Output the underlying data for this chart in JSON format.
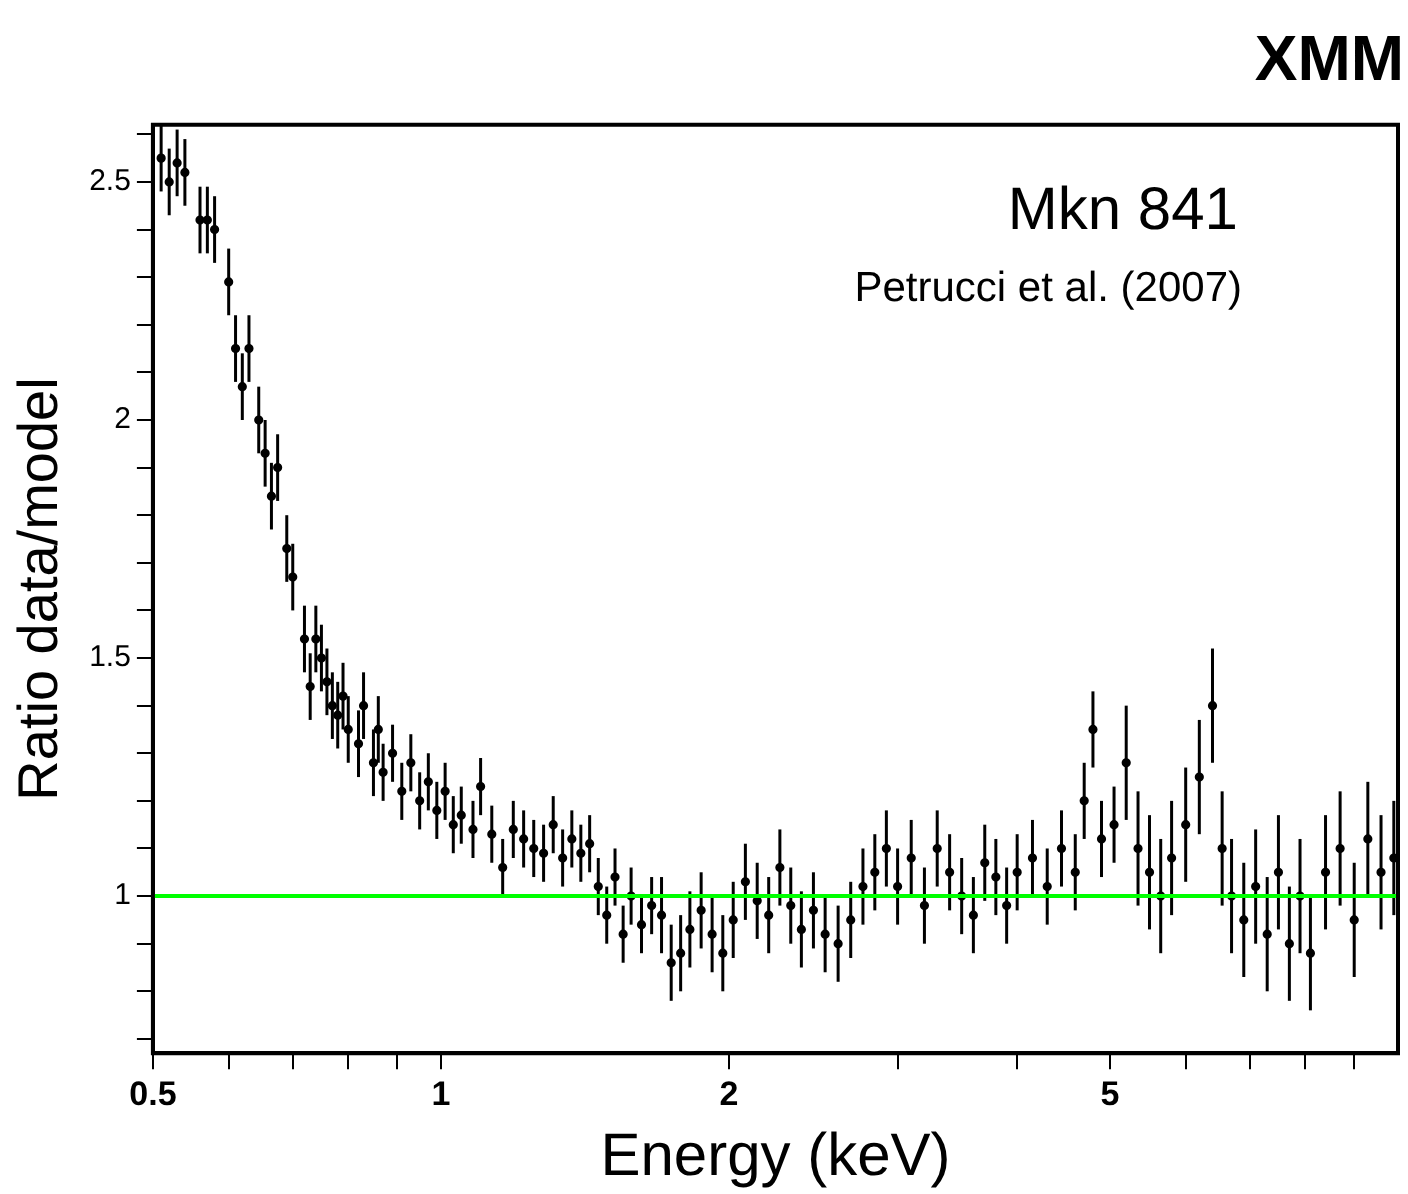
{
  "chart_data": {
    "type": "scatter",
    "title": "XMM",
    "xlabel": "Energy (keV)",
    "ylabel": "Ratio data/model",
    "annotations": [
      "Mkn 841",
      "Petrucci et al. (2007)"
    ],
    "log": "x",
    "grid": false,
    "legend": false,
    "marker": "circle",
    "xlim": [
      0.5,
      10
    ],
    "xticks": [
      0.5,
      {
        "value": 0.6,
        "label": null
      },
      {
        "value": 0.7,
        "label": null
      },
      {
        "value": 0.8,
        "label": null
      },
      {
        "value": 0.9,
        "label": null
      },
      1,
      2,
      {
        "value": 3,
        "label": null
      },
      {
        "value": 4,
        "label": null
      },
      5,
      {
        "value": 6,
        "label": null
      },
      {
        "value": 7,
        "label": null
      },
      {
        "value": 8,
        "label": null
      },
      {
        "value": 9,
        "label": null
      }
    ],
    "ylim": [
      0.67,
      2.62
    ],
    "yticks": [
      {
        "value": 0.7,
        "label": null
      },
      {
        "value": 0.8,
        "label": null
      },
      {
        "value": 0.9,
        "label": null
      },
      1,
      {
        "value": 1.1,
        "label": null
      },
      {
        "value": 1.2,
        "label": null
      },
      {
        "value": 1.3,
        "label": null
      },
      {
        "value": 1.4,
        "label": null
      },
      1.5,
      {
        "value": 1.6,
        "label": null
      },
      {
        "value": 1.7,
        "label": null
      },
      {
        "value": 1.8,
        "label": null
      },
      {
        "value": 1.9,
        "label": null
      },
      2,
      {
        "value": 2.1,
        "label": null
      },
      {
        "value": 2.2,
        "label": null
      },
      {
        "value": 2.3,
        "label": null
      },
      {
        "value": 2.4,
        "label": null
      },
      2.5,
      {
        "value": 2.6,
        "label": null
      }
    ],
    "ref_lines": [
      {
        "axis": "y",
        "value": 1,
        "color": "#00ff00"
      }
    ],
    "series": [
      {
        "color": "#000000",
        "x": [
          0.51,
          0.52,
          0.53,
          0.54,
          0.56,
          0.57,
          0.58,
          0.6,
          0.61,
          0.62,
          0.63,
          0.645,
          0.655,
          0.665,
          0.675,
          0.69,
          0.7,
          0.72,
          0.73,
          0.74,
          0.75,
          0.76,
          0.77,
          0.78,
          0.79,
          0.8,
          0.82,
          0.83,
          0.85,
          0.86,
          0.87,
          0.89,
          0.91,
          0.93,
          0.95,
          0.97,
          0.99,
          1.01,
          1.03,
          1.05,
          1.08,
          1.1,
          1.13,
          1.16,
          1.19,
          1.22,
          1.25,
          1.28,
          1.31,
          1.34,
          1.37,
          1.4,
          1.43,
          1.46,
          1.49,
          1.52,
          1.55,
          1.58,
          1.62,
          1.66,
          1.7,
          1.74,
          1.78,
          1.82,
          1.87,
          1.92,
          1.97,
          2.02,
          2.08,
          2.14,
          2.2,
          2.26,
          2.32,
          2.38,
          2.45,
          2.52,
          2.6,
          2.68,
          2.76,
          2.84,
          2.92,
          3.0,
          3.1,
          3.2,
          3.3,
          3.4,
          3.5,
          3.6,
          3.7,
          3.8,
          3.9,
          4.0,
          4.15,
          4.3,
          4.45,
          4.6,
          4.7,
          4.8,
          4.9,
          5.05,
          5.2,
          5.35,
          5.5,
          5.65,
          5.8,
          6.0,
          6.2,
          6.4,
          6.55,
          6.7,
          6.9,
          7.1,
          7.3,
          7.5,
          7.7,
          7.9,
          8.1,
          8.4,
          8.7,
          9.0,
          9.3,
          9.6,
          9.9
        ],
        "values": [
          2.55,
          2.5,
          2.54,
          2.52,
          2.42,
          2.42,
          2.4,
          2.29,
          2.15,
          2.07,
          2.15,
          2.0,
          1.93,
          1.84,
          1.9,
          1.73,
          1.67,
          1.54,
          1.44,
          1.54,
          1.5,
          1.45,
          1.4,
          1.38,
          1.42,
          1.35,
          1.32,
          1.4,
          1.28,
          1.35,
          1.26,
          1.3,
          1.22,
          1.28,
          1.2,
          1.24,
          1.18,
          1.22,
          1.15,
          1.17,
          1.14,
          1.23,
          1.13,
          1.06,
          1.14,
          1.12,
          1.1,
          1.09,
          1.15,
          1.08,
          1.12,
          1.09,
          1.11,
          1.02,
          0.96,
          1.04,
          0.92,
          1.0,
          0.94,
          0.98,
          0.96,
          0.86,
          0.88,
          0.93,
          0.97,
          0.92,
          0.88,
          0.95,
          1.03,
          0.99,
          0.96,
          1.06,
          0.98,
          0.93,
          0.97,
          0.92,
          0.9,
          0.95,
          1.02,
          1.05,
          1.1,
          1.02,
          1.08,
          0.98,
          1.1,
          1.05,
          1.0,
          0.96,
          1.07,
          1.04,
          0.98,
          1.05,
          1.08,
          1.02,
          1.1,
          1.05,
          1.2,
          1.35,
          1.12,
          1.15,
          1.28,
          1.1,
          1.05,
          1.0,
          1.08,
          1.15,
          1.25,
          1.4,
          1.1,
          1.0,
          0.95,
          1.02,
          0.92,
          1.05,
          0.9,
          1.0,
          0.88,
          1.05,
          1.1,
          0.95,
          1.12,
          1.05,
          1.08
        ],
        "errors": [
          0.07,
          0.07,
          0.07,
          0.07,
          0.07,
          0.07,
          0.07,
          0.07,
          0.07,
          0.07,
          0.07,
          0.07,
          0.07,
          0.07,
          0.07,
          0.07,
          0.07,
          0.07,
          0.07,
          0.07,
          0.07,
          0.07,
          0.07,
          0.07,
          0.07,
          0.07,
          0.07,
          0.07,
          0.07,
          0.07,
          0.06,
          0.06,
          0.06,
          0.06,
          0.06,
          0.06,
          0.06,
          0.06,
          0.06,
          0.06,
          0.06,
          0.06,
          0.06,
          0.06,
          0.06,
          0.06,
          0.06,
          0.06,
          0.06,
          0.06,
          0.06,
          0.06,
          0.06,
          0.06,
          0.06,
          0.06,
          0.06,
          0.06,
          0.06,
          0.06,
          0.08,
          0.08,
          0.08,
          0.08,
          0.08,
          0.08,
          0.08,
          0.08,
          0.08,
          0.08,
          0.08,
          0.08,
          0.08,
          0.08,
          0.08,
          0.08,
          0.08,
          0.08,
          0.08,
          0.08,
          0.08,
          0.08,
          0.08,
          0.08,
          0.08,
          0.08,
          0.08,
          0.08,
          0.08,
          0.08,
          0.08,
          0.08,
          0.08,
          0.08,
          0.08,
          0.08,
          0.08,
          0.08,
          0.08,
          0.08,
          0.12,
          0.12,
          0.12,
          0.12,
          0.12,
          0.12,
          0.12,
          0.12,
          0.12,
          0.12,
          0.12,
          0.12,
          0.12,
          0.12,
          0.12,
          0.12,
          0.12,
          0.12,
          0.12,
          0.12,
          0.12,
          0.12,
          0.12
        ]
      }
    ]
  }
}
